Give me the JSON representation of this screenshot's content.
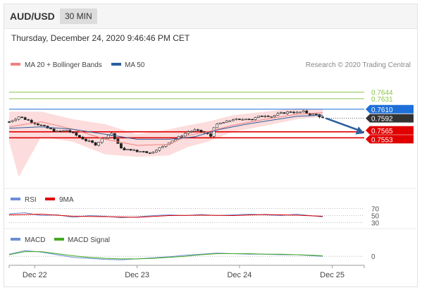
{
  "header": {
    "symbol": "AUD/USD",
    "interval": "30 MIN"
  },
  "timestamp": "Thursday, December 24, 2020 9:46:46 PM CET",
  "colors": {
    "resistance": "#8bc34a",
    "pivot": "#1e6fd9",
    "support": "#e00000",
    "current": "#333333",
    "ma50": "#2c5f9e",
    "ma20": "#f08080",
    "bollinger": "#fbd0d0",
    "rsi": "#6b8fd6",
    "nine_ma": "#e00000",
    "macd": "#6b8fd6",
    "macd_signal": "#44aa22",
    "arrow": "#2c5f9e"
  },
  "main_legend": [
    {
      "label": "MA 20 + Bollinger Bands",
      "color": "#f08080"
    },
    {
      "label": "MA 50",
      "color": "#2c5f9e"
    }
  ],
  "copyright": "Research © 2020 Trading Central",
  "rsi_legend": [
    {
      "label": "RSI",
      "color": "#6b8fd6"
    },
    {
      "label": "9MA",
      "color": "#e00000"
    }
  ],
  "macd_legend": [
    {
      "label": "MACD",
      "color": "#6b8fd6"
    },
    {
      "label": "MACD Signal",
      "color": "#44aa22"
    }
  ],
  "chart_data": {
    "type": "candlestick",
    "x_ticks": [
      "Dec 22",
      "Dec 23",
      "Dec 24",
      "Dec 25"
    ],
    "y_range": [
      0.7455,
      0.768
    ],
    "levels": [
      {
        "label": "0.7644",
        "value": 0.7644,
        "kind": "resistance"
      },
      {
        "label": "0.7631",
        "value": 0.7631,
        "kind": "resistance"
      },
      {
        "label": "0.7610",
        "value": 0.761,
        "kind": "pivot"
      },
      {
        "label": "0.7592",
        "value": 0.7592,
        "kind": "current"
      },
      {
        "label": "0.7565",
        "value": 0.7565,
        "kind": "support"
      },
      {
        "label": "0.7553",
        "value": 0.7553,
        "kind": "support"
      }
    ],
    "close_path": [
      [
        0,
        0.7585
      ],
      [
        3,
        0.7595
      ],
      [
        6,
        0.7588
      ],
      [
        9,
        0.758
      ],
      [
        12,
        0.7572
      ],
      [
        15,
        0.7565
      ],
      [
        18,
        0.7568
      ],
      [
        21,
        0.7558
      ],
      [
        24,
        0.7548
      ],
      [
        27,
        0.754
      ],
      [
        30,
        0.7555
      ],
      [
        32,
        0.7562
      ],
      [
        34,
        0.754
      ],
      [
        36,
        0.7528
      ],
      [
        38,
        0.753
      ],
      [
        40,
        0.7525
      ],
      [
        42,
        0.7527
      ],
      [
        44,
        0.7522
      ],
      [
        46,
        0.753
      ],
      [
        48,
        0.7535
      ],
      [
        50,
        0.7545
      ],
      [
        52,
        0.755
      ],
      [
        54,
        0.7558
      ],
      [
        56,
        0.7565
      ],
      [
        58,
        0.7568
      ],
      [
        60,
        0.7565
      ],
      [
        62,
        0.756
      ],
      [
        63,
        0.7556
      ],
      [
        64,
        0.7575
      ],
      [
        66,
        0.7582
      ],
      [
        68,
        0.7585
      ],
      [
        70,
        0.759
      ],
      [
        72,
        0.7588
      ],
      [
        74,
        0.7592
      ],
      [
        76,
        0.759
      ],
      [
        78,
        0.7595
      ],
      [
        80,
        0.7598
      ],
      [
        82,
        0.7596
      ],
      [
        84,
        0.76
      ],
      [
        86,
        0.7603
      ],
      [
        88,
        0.7605
      ],
      [
        90,
        0.7603
      ],
      [
        92,
        0.7605
      ],
      [
        94,
        0.76
      ],
      [
        96,
        0.7599
      ],
      [
        97,
        0.7596
      ],
      [
        98,
        0.7593
      ]
    ],
    "ma20_path": [
      [
        0,
        0.7575
      ],
      [
        10,
        0.7585
      ],
      [
        20,
        0.757
      ],
      [
        30,
        0.755
      ],
      [
        40,
        0.7538
      ],
      [
        50,
        0.754
      ],
      [
        56,
        0.7558
      ],
      [
        62,
        0.7565
      ],
      [
        70,
        0.7578
      ],
      [
        80,
        0.759
      ],
      [
        90,
        0.76
      ],
      [
        98,
        0.7603
      ]
    ],
    "bb_upper_path": [
      [
        0,
        0.7605
      ],
      [
        10,
        0.7605
      ],
      [
        20,
        0.759
      ],
      [
        30,
        0.758
      ],
      [
        40,
        0.756
      ],
      [
        50,
        0.757
      ],
      [
        56,
        0.7578
      ],
      [
        62,
        0.7585
      ],
      [
        70,
        0.7598
      ],
      [
        80,
        0.7605
      ],
      [
        90,
        0.7612
      ],
      [
        98,
        0.761
      ]
    ],
    "bb_lower_path": [
      [
        0,
        0.7545
      ],
      [
        3,
        0.7475
      ],
      [
        10,
        0.7555
      ],
      [
        20,
        0.7545
      ],
      [
        30,
        0.752
      ],
      [
        40,
        0.7515
      ],
      [
        50,
        0.7518
      ],
      [
        56,
        0.7535
      ],
      [
        62,
        0.7545
      ],
      [
        70,
        0.7565
      ],
      [
        80,
        0.7577
      ],
      [
        90,
        0.759
      ],
      [
        98,
        0.7595
      ]
    ],
    "ma50_path": [
      [
        0,
        0.7572
      ],
      [
        10,
        0.7575
      ],
      [
        20,
        0.757
      ],
      [
        30,
        0.756
      ],
      [
        40,
        0.755
      ],
      [
        50,
        0.755
      ],
      [
        58,
        0.7555
      ],
      [
        66,
        0.757
      ],
      [
        74,
        0.758
      ],
      [
        82,
        0.7588
      ],
      [
        90,
        0.7596
      ],
      [
        98,
        0.7598
      ]
    ],
    "forecast_arrow": {
      "from": [
        99,
        0.7592
      ],
      "to": [
        111,
        0.7562
      ]
    },
    "rsi": {
      "ticks": [
        "70",
        "50",
        "30"
      ],
      "y_range": [
        25,
        75
      ],
      "rsi_path": [
        [
          0,
          55
        ],
        [
          5,
          58
        ],
        [
          10,
          50
        ],
        [
          15,
          52
        ],
        [
          20,
          45
        ],
        [
          25,
          50
        ],
        [
          30,
          48
        ],
        [
          35,
          44
        ],
        [
          40,
          46
        ],
        [
          45,
          50
        ],
        [
          50,
          52
        ],
        [
          55,
          50
        ],
        [
          60,
          53
        ],
        [
          65,
          50
        ],
        [
          70,
          52
        ],
        [
          75,
          54
        ],
        [
          80,
          52
        ],
        [
          85,
          50
        ],
        [
          90,
          54
        ],
        [
          95,
          49
        ],
        [
          98,
          46
        ]
      ],
      "ma9_path": [
        [
          0,
          52
        ],
        [
          10,
          54
        ],
        [
          20,
          48
        ],
        [
          30,
          47
        ],
        [
          40,
          45
        ],
        [
          50,
          50
        ],
        [
          60,
          51
        ],
        [
          70,
          50
        ],
        [
          80,
          53
        ],
        [
          90,
          51
        ],
        [
          98,
          48
        ]
      ]
    },
    "macd": {
      "ticks": [
        "0"
      ],
      "y_range": [
        -0.0012,
        0.0018
      ],
      "macd_path": [
        [
          0,
          0.0004
        ],
        [
          5,
          0.0011
        ],
        [
          10,
          0.0008
        ],
        [
          15,
          0.0003
        ],
        [
          20,
          -0.0002
        ],
        [
          25,
          -0.0004
        ],
        [
          30,
          -0.0006
        ],
        [
          35,
          -0.0007
        ],
        [
          40,
          -0.0005
        ],
        [
          45,
          -0.0003
        ],
        [
          50,
          -0.0001
        ],
        [
          55,
          0.0002
        ],
        [
          60,
          0.0004
        ],
        [
          65,
          0.0006
        ],
        [
          70,
          0.0005
        ],
        [
          75,
          0.0004
        ],
        [
          80,
          0.0004
        ],
        [
          85,
          0.0003
        ],
        [
          90,
          0.0003
        ],
        [
          95,
          0.0001
        ],
        [
          98,
          0.0
        ]
      ],
      "signal_path": [
        [
          0,
          0.0003
        ],
        [
          5,
          0.0009
        ],
        [
          10,
          0.0009
        ],
        [
          15,
          0.0005
        ],
        [
          20,
          0.0001
        ],
        [
          25,
          -0.0002
        ],
        [
          30,
          -0.0004
        ],
        [
          35,
          -0.0005
        ],
        [
          40,
          -0.0005
        ],
        [
          45,
          -0.0004
        ],
        [
          50,
          -0.0002
        ],
        [
          55,
          0.0
        ],
        [
          60,
          0.0003
        ],
        [
          65,
          0.0005
        ],
        [
          70,
          0.0005
        ],
        [
          75,
          0.0005
        ],
        [
          80,
          0.0004
        ],
        [
          85,
          0.0004
        ],
        [
          90,
          0.0003
        ],
        [
          95,
          0.0002
        ],
        [
          98,
          0.0001
        ]
      ]
    }
  }
}
